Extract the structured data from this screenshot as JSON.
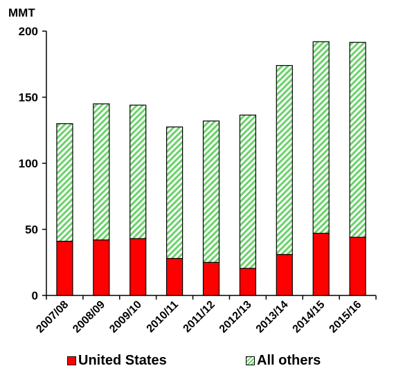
{
  "chart_data": {
    "type": "bar",
    "stacked": true,
    "unit_label": "MMT",
    "categories": [
      "2007/08",
      "2008/09",
      "2009/10",
      "2010/11",
      "2011/12",
      "2012/13",
      "2013/14",
      "2014/15",
      "2015/16"
    ],
    "series": [
      {
        "name": "United States",
        "values": [
          41,
          42,
          43,
          28,
          25,
          20.5,
          31,
          47,
          44
        ],
        "color": "#ff0000"
      },
      {
        "name": "All others",
        "values": [
          89,
          103,
          101,
          99.5,
          107,
          116,
          143,
          145,
          147.5
        ],
        "color": "#6ad26a"
      }
    ],
    "yticks": [
      0,
      50,
      100,
      150,
      200
    ],
    "ylim": [
      0,
      200
    ],
    "grid": false,
    "legend_position": "bottom"
  }
}
